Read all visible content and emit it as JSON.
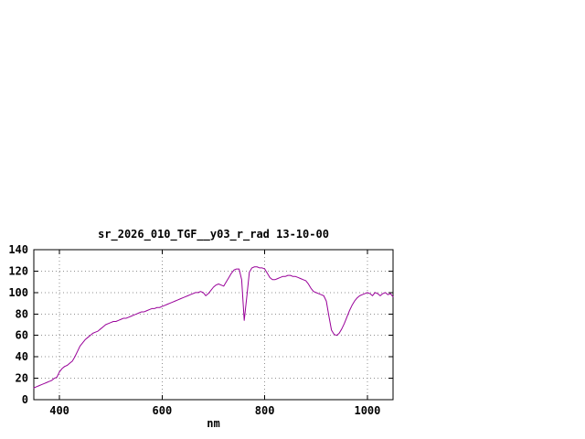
{
  "page": {
    "background": "#ffffff"
  },
  "chart_data": {
    "type": "line",
    "title": "sr_2026_010_TGF__y03_r_rad 13-10-00",
    "xlabel": "nm",
    "ylabel": "",
    "xlim": [
      350,
      1050
    ],
    "ylim": [
      0,
      140
    ],
    "xticks": [
      400,
      600,
      800,
      1000
    ],
    "yticks": [
      0,
      20,
      40,
      60,
      80,
      100,
      120,
      140
    ],
    "grid": true,
    "legend": "none",
    "line_color": "#990099",
    "grid_color": "#909090",
    "border_color": "#000000",
    "points": [
      [
        350,
        11
      ],
      [
        355,
        12
      ],
      [
        360,
        13
      ],
      [
        365,
        14
      ],
      [
        370,
        15
      ],
      [
        375,
        16
      ],
      [
        380,
        17
      ],
      [
        385,
        18
      ],
      [
        390,
        20
      ],
      [
        395,
        21
      ],
      [
        400,
        26
      ],
      [
        405,
        29
      ],
      [
        410,
        31
      ],
      [
        415,
        32
      ],
      [
        420,
        34
      ],
      [
        425,
        36
      ],
      [
        430,
        40
      ],
      [
        435,
        45
      ],
      [
        440,
        50
      ],
      [
        445,
        53
      ],
      [
        450,
        56
      ],
      [
        455,
        58
      ],
      [
        460,
        60
      ],
      [
        465,
        62
      ],
      [
        470,
        63
      ],
      [
        475,
        64
      ],
      [
        480,
        66
      ],
      [
        485,
        68
      ],
      [
        490,
        70
      ],
      [
        495,
        71
      ],
      [
        500,
        72
      ],
      [
        505,
        73
      ],
      [
        510,
        73
      ],
      [
        515,
        74
      ],
      [
        520,
        75
      ],
      [
        525,
        76
      ],
      [
        530,
        76
      ],
      [
        535,
        77
      ],
      [
        540,
        78
      ],
      [
        545,
        79
      ],
      [
        550,
        80
      ],
      [
        555,
        81
      ],
      [
        560,
        82
      ],
      [
        565,
        82
      ],
      [
        570,
        83
      ],
      [
        575,
        84
      ],
      [
        580,
        85
      ],
      [
        585,
        85
      ],
      [
        590,
        86
      ],
      [
        595,
        86
      ],
      [
        600,
        87
      ],
      [
        605,
        88
      ],
      [
        610,
        89
      ],
      [
        615,
        90
      ],
      [
        620,
        91
      ],
      [
        625,
        92
      ],
      [
        630,
        93
      ],
      [
        635,
        94
      ],
      [
        640,
        95
      ],
      [
        645,
        96
      ],
      [
        650,
        97
      ],
      [
        655,
        98
      ],
      [
        660,
        99
      ],
      [
        665,
        100
      ],
      [
        670,
        100
      ],
      [
        675,
        101
      ],
      [
        680,
        100
      ],
      [
        685,
        97
      ],
      [
        690,
        99
      ],
      [
        695,
        102
      ],
      [
        700,
        105
      ],
      [
        705,
        107
      ],
      [
        710,
        108
      ],
      [
        715,
        107
      ],
      [
        720,
        106
      ],
      [
        725,
        110
      ],
      [
        730,
        114
      ],
      [
        735,
        118
      ],
      [
        740,
        121
      ],
      [
        745,
        122
      ],
      [
        750,
        122
      ],
      [
        755,
        112
      ],
      [
        760,
        74
      ],
      [
        765,
        96
      ],
      [
        770,
        119
      ],
      [
        775,
        123
      ],
      [
        780,
        124
      ],
      [
        785,
        124
      ],
      [
        790,
        123
      ],
      [
        795,
        123
      ],
      [
        800,
        122
      ],
      [
        805,
        118
      ],
      [
        810,
        114
      ],
      [
        815,
        112
      ],
      [
        820,
        112
      ],
      [
        825,
        113
      ],
      [
        830,
        114
      ],
      [
        835,
        115
      ],
      [
        840,
        115
      ],
      [
        845,
        116
      ],
      [
        850,
        116
      ],
      [
        855,
        115
      ],
      [
        860,
        115
      ],
      [
        865,
        114
      ],
      [
        870,
        113
      ],
      [
        875,
        112
      ],
      [
        880,
        111
      ],
      [
        885,
        108
      ],
      [
        890,
        104
      ],
      [
        895,
        101
      ],
      [
        900,
        100
      ],
      [
        905,
        99
      ],
      [
        910,
        98
      ],
      [
        915,
        97
      ],
      [
        920,
        92
      ],
      [
        925,
        78
      ],
      [
        930,
        65
      ],
      [
        935,
        61
      ],
      [
        940,
        60
      ],
      [
        945,
        62
      ],
      [
        950,
        66
      ],
      [
        955,
        71
      ],
      [
        960,
        77
      ],
      [
        965,
        83
      ],
      [
        970,
        88
      ],
      [
        975,
        92
      ],
      [
        980,
        95
      ],
      [
        985,
        97
      ],
      [
        990,
        98
      ],
      [
        995,
        99
      ],
      [
        1000,
        100
      ],
      [
        1005,
        99
      ],
      [
        1010,
        97
      ],
      [
        1015,
        100
      ],
      [
        1020,
        99
      ],
      [
        1025,
        97
      ],
      [
        1030,
        99
      ],
      [
        1035,
        100
      ],
      [
        1040,
        98
      ],
      [
        1045,
        99
      ],
      [
        1050,
        96
      ]
    ]
  }
}
